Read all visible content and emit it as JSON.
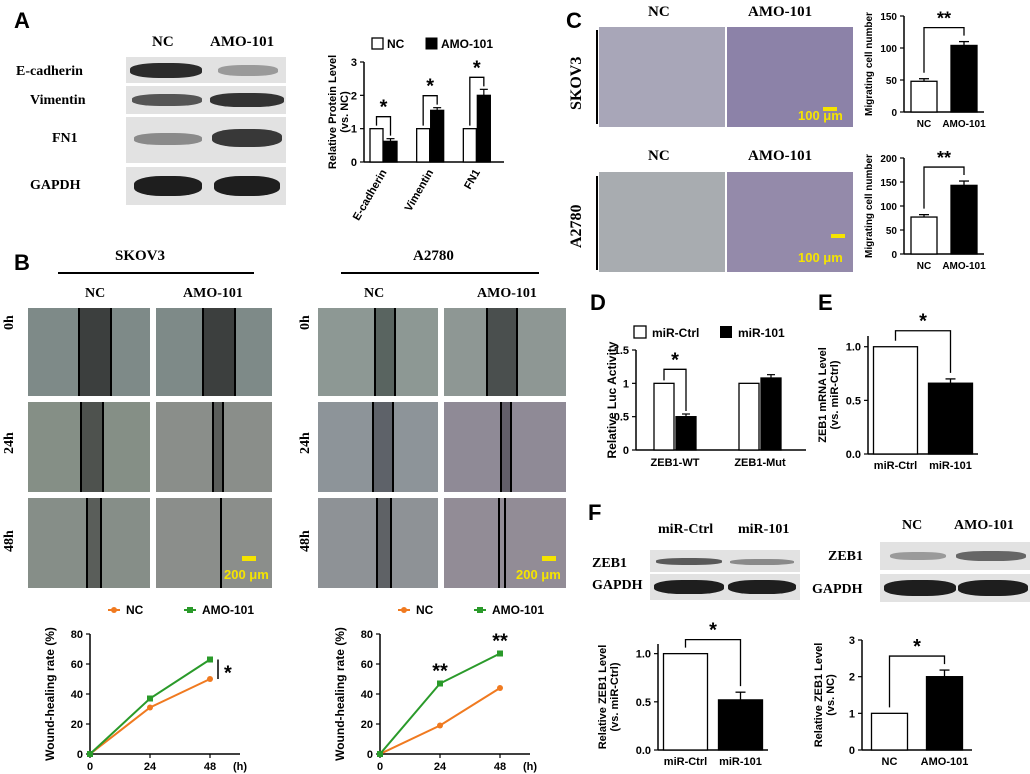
{
  "panels": {
    "A": "A",
    "B": "B",
    "C": "C",
    "D": "D",
    "E": "E",
    "F": "F"
  },
  "panelA": {
    "columns": [
      "NC",
      "AMO-101"
    ],
    "rows": [
      "E-cadherin",
      "Vimentin",
      "FN1",
      "GAPDH"
    ]
  },
  "panelB": {
    "cells": [
      "SKOV3",
      "A2780"
    ],
    "columns": [
      "NC",
      "AMO-101"
    ],
    "times": [
      "0h",
      "24h",
      "48h"
    ],
    "scalebar": "200 μm"
  },
  "panelC": {
    "columns": [
      "NC",
      "AMO-101"
    ],
    "cells": [
      "SKOV3",
      "A2780"
    ],
    "scalebar": "100 μm"
  },
  "panelF": {
    "blot1_cols": [
      "miR-Ctrl",
      "miR-101"
    ],
    "blot2_cols": [
      "NC",
      "AMO-101"
    ],
    "rows": [
      "ZEB1",
      "GAPDH"
    ]
  },
  "colors": {
    "nc_line": "#f07a20",
    "amo_line": "#2a9a2a",
    "scale": "#f5e400"
  },
  "chart_data": [
    {
      "id": "A",
      "type": "bar",
      "categories": [
        "E-cadherin",
        "Vimentin",
        "FN1"
      ],
      "series": [
        {
          "name": "NC",
          "values": [
            1,
            1,
            1
          ],
          "err": [
            0,
            0,
            0
          ]
        },
        {
          "name": "AMO-101",
          "values": [
            0.62,
            1.55,
            2.0
          ],
          "err": [
            0.08,
            0.08,
            0.18
          ]
        }
      ],
      "ylabel": "Relative Protein Level (vs. NC)",
      "ylim": [
        0,
        3
      ],
      "yticks": [
        0,
        1,
        2,
        3
      ],
      "sig": [
        "*",
        "*",
        "*"
      ],
      "legend": "top"
    },
    {
      "id": "B-SKOV3",
      "type": "line",
      "x": [
        0,
        24,
        48
      ],
      "series": [
        {
          "name": "NC",
          "values": [
            0,
            31,
            50
          ]
        },
        {
          "name": "AMO-101",
          "values": [
            0,
            37,
            63
          ]
        }
      ],
      "xlabel": "(h)",
      "ylabel": "Wound-healing rate (%)",
      "ylim": [
        0,
        80
      ],
      "yticks": [
        0,
        20,
        40,
        60,
        80
      ],
      "sig": [
        "*"
      ]
    },
    {
      "id": "B-A2780",
      "type": "line",
      "x": [
        0,
        24,
        48
      ],
      "series": [
        {
          "name": "NC",
          "values": [
            0,
            19,
            44
          ]
        },
        {
          "name": "AMO-101",
          "values": [
            0,
            47,
            67
          ]
        }
      ],
      "xlabel": "(h)",
      "ylabel": "Wound-healing rate (%)",
      "ylim": [
        0,
        80
      ],
      "yticks": [
        0,
        20,
        40,
        60,
        80
      ],
      "sig": [
        "**",
        "**"
      ]
    },
    {
      "id": "C-SKOV3",
      "type": "bar",
      "categories": [
        "NC",
        "AMO-101"
      ],
      "values": [
        48,
        104
      ],
      "err": [
        4,
        6
      ],
      "ylabel": "Migrating cell number",
      "ylim": [
        0,
        150
      ],
      "yticks": [
        0,
        50,
        100,
        150
      ],
      "sig": [
        "**"
      ]
    },
    {
      "id": "C-A2780",
      "type": "bar",
      "categories": [
        "NC",
        "AMO-101"
      ],
      "values": [
        77,
        143
      ],
      "err": [
        5,
        9
      ],
      "ylabel": "Migrating cell number",
      "ylim": [
        0,
        200
      ],
      "yticks": [
        0,
        50,
        100,
        150,
        200
      ],
      "sig": [
        "**"
      ]
    },
    {
      "id": "D",
      "type": "bar",
      "categories": [
        "ZEB1-WT",
        "ZEB1-Mut"
      ],
      "series": [
        {
          "name": "miR-Ctrl",
          "values": [
            1,
            1
          ],
          "err": [
            0,
            0
          ]
        },
        {
          "name": "miR-101",
          "values": [
            0.5,
            1.08
          ],
          "err": [
            0.04,
            0.05
          ]
        }
      ],
      "ylabel": "Relative Luc Activity",
      "ylim": [
        0,
        1.5
      ],
      "yticks": [
        0,
        0.5,
        1,
        1.5
      ],
      "sig": [
        "*"
      ],
      "legend": "top"
    },
    {
      "id": "E",
      "type": "bar",
      "categories": [
        "miR-Ctrl",
        "miR-101"
      ],
      "values": [
        1,
        0.66
      ],
      "err": [
        0,
        0.04
      ],
      "ylabel": "ZEB1 mRNA Level (vs. miR-Ctrl)",
      "ylim": [
        0,
        1.1
      ],
      "yticks": [
        0,
        0.5,
        1.0
      ],
      "sig": [
        "*"
      ]
    },
    {
      "id": "F1",
      "type": "bar",
      "categories": [
        "miR-Ctrl",
        "miR-101"
      ],
      "values": [
        1,
        0.52
      ],
      "err": [
        0,
        0.08
      ],
      "ylabel": "Relative ZEB1 Level (vs. miR-Ctrl)",
      "ylim": [
        0,
        1.1
      ],
      "yticks": [
        0,
        0.5,
        1.0
      ],
      "sig": [
        "*"
      ]
    },
    {
      "id": "F2",
      "type": "bar",
      "categories": [
        "NC",
        "AMO-101"
      ],
      "values": [
        1,
        2.0
      ],
      "err": [
        0,
        0.18
      ],
      "ylabel": "Relative ZEB1 Level (vs. NC)",
      "ylim": [
        0,
        3
      ],
      "yticks": [
        0,
        1,
        2,
        3
      ],
      "sig": [
        "*"
      ]
    }
  ]
}
